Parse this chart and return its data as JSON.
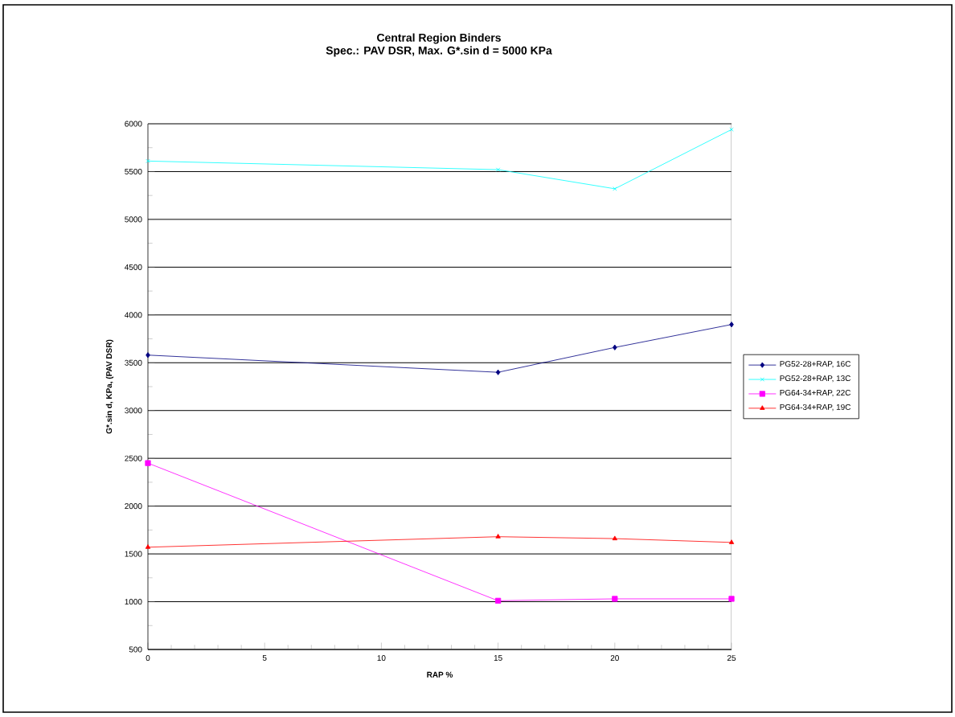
{
  "chart_data": {
    "type": "line",
    "title": "Central Region Binders",
    "subtitle": "Spec.: PAV DSR, Max. G*.sin d = 5000 KPa",
    "xlabel": "RAP %",
    "ylabel": "G*.sin d, KPa, (PAV DSR)",
    "x": [
      0,
      15,
      20,
      25
    ],
    "series": [
      {
        "name": "PG52-28+RAP, 16C",
        "color": "#000080",
        "marker": "diamond",
        "values": [
          3580,
          3400,
          3660,
          3900
        ]
      },
      {
        "name": "PG52-28+RAP, 13C",
        "color": "#00ffff",
        "marker": "cross",
        "values": [
          5610,
          5520,
          5320,
          5940
        ]
      },
      {
        "name": "PG64-34+RAP, 22C",
        "color": "#ff00ff",
        "marker": "square",
        "values": [
          2450,
          1010,
          1030,
          1030
        ]
      },
      {
        "name": "PG64-34+RAP, 19C",
        "color": "#ff0000",
        "marker": "triangle",
        "values": [
          1570,
          1680,
          1660,
          1620
        ]
      }
    ],
    "xlim": [
      0,
      25
    ],
    "xticks": [
      0,
      5,
      10,
      15,
      20,
      25
    ],
    "ylim": [
      500,
      6000
    ],
    "yticks": [
      500,
      1000,
      1500,
      2000,
      2500,
      3000,
      3500,
      4000,
      4500,
      5000,
      5500,
      6000
    ],
    "grid": "y",
    "legend": "right",
    "line_style": "solid"
  }
}
